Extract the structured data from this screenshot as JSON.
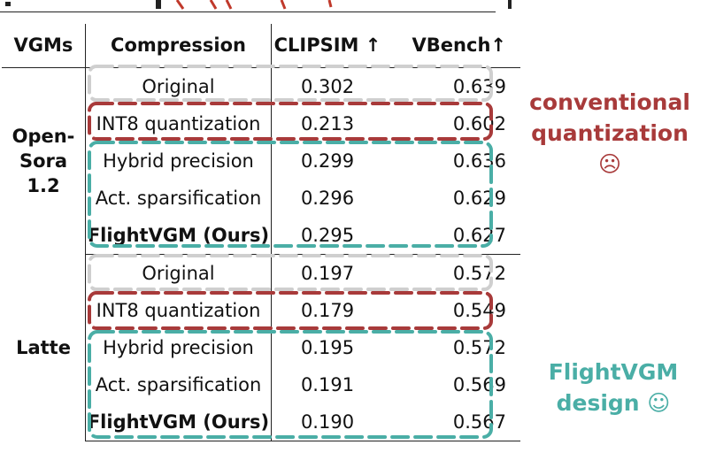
{
  "table": {
    "headers": {
      "vgms": "VGMs",
      "compression": "Compression",
      "clipsim": "CLIPSIM ↑",
      "vbench": "VBench↑"
    },
    "groups": [
      {
        "model": "Open-Sora 1.2",
        "model_lines": [
          "Open-",
          "Sora",
          "1.2"
        ],
        "rows": [
          {
            "compression": "Original",
            "clipsim": "0.302",
            "vbench": "0.639"
          },
          {
            "compression": "INT8 quantization",
            "clipsim": "0.213",
            "vbench": "0.602"
          },
          {
            "compression": "Hybrid precision",
            "clipsim": "0.299",
            "vbench": "0.636"
          },
          {
            "compression": "Act. sparsification",
            "clipsim": "0.296",
            "vbench": "0.629"
          },
          {
            "compression": "FlightVGM (Ours)",
            "clipsim": "0.295",
            "vbench": "0.627"
          }
        ]
      },
      {
        "model": "Latte",
        "model_lines": [
          "Latte"
        ],
        "rows": [
          {
            "compression": "Original",
            "clipsim": "0.197",
            "vbench": "0.572"
          },
          {
            "compression": "INT8 quantization",
            "clipsim": "0.179",
            "vbench": "0.549"
          },
          {
            "compression": "Hybrid precision",
            "clipsim": "0.195",
            "vbench": "0.572"
          },
          {
            "compression": "Act. sparsification",
            "clipsim": "0.191",
            "vbench": "0.569"
          },
          {
            "compression": "FlightVGM (Ours)",
            "clipsim": "0.190",
            "vbench": "0.567"
          }
        ]
      }
    ]
  },
  "annotations": {
    "conventional": {
      "line1": "conventional",
      "line2": "quantization ☹"
    },
    "design": {
      "line1": "FlightVGM",
      "line2": "design ☺"
    }
  },
  "colors": {
    "original_box": "#cfcfcf",
    "int8_box": "#a83a3a",
    "flightvgm_box": "#4aaea6",
    "rule": "#222222",
    "top_fragment": "#c0392b"
  }
}
